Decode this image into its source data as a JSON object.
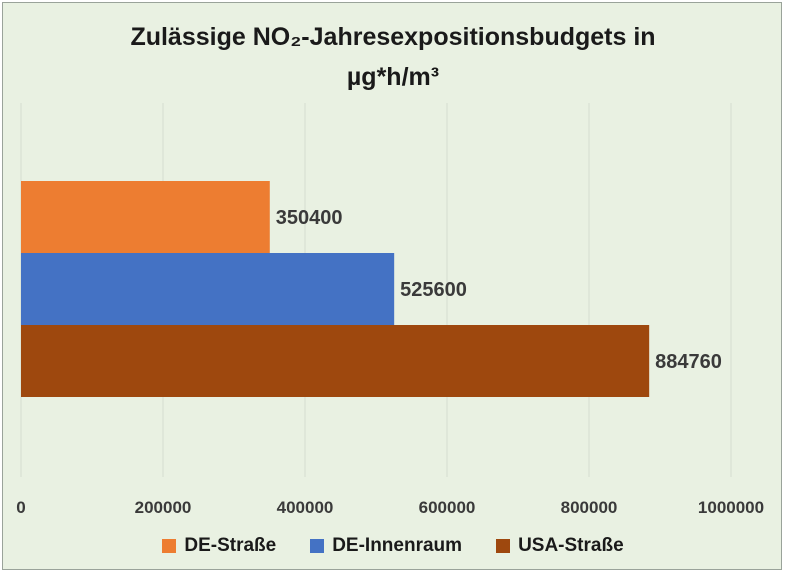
{
  "chart_data": {
    "type": "bar",
    "orientation": "horizontal",
    "title_line1": "Zulässige NO₂-Jahresexpositionsbudgets  in",
    "title_line2": "µg*h/m³",
    "categories": [
      "DE-Straße",
      "DE-Innenraum",
      "USA-Straße"
    ],
    "values": [
      350400,
      525600,
      884760
    ],
    "colors": [
      "#ed7d31",
      "#4472c4",
      "#9e480e"
    ],
    "xlim": [
      0,
      1000000
    ],
    "x_ticks": [
      "0",
      "200000",
      "400000",
      "600000",
      "800000",
      "1000000"
    ],
    "data_labels": [
      "350400",
      "525600",
      "884760"
    ],
    "grid": true,
    "legend_position": "bottom"
  }
}
